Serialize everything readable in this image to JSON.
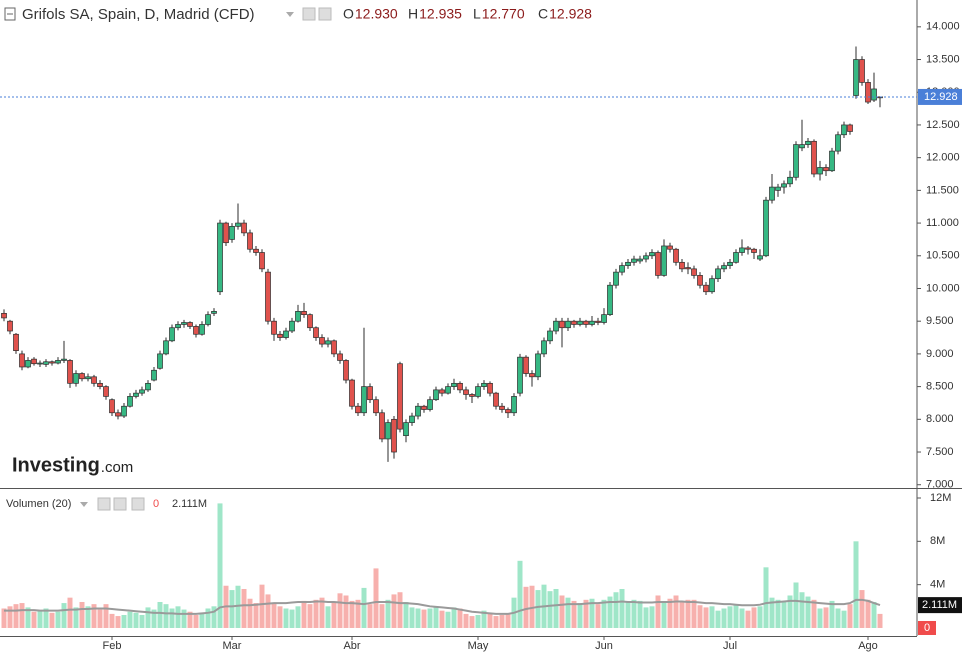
{
  "chart_data": {
    "type": "candlestick",
    "title": "Grifols SA, Spain, D, Madrid (CFD)",
    "ohlc": [
      {
        "label": "O",
        "value": "12.930"
      },
      {
        "label": "H",
        "value": "12.935"
      },
      {
        "label": "L",
        "value": "12.770"
      },
      {
        "label": "C",
        "value": "12.928"
      }
    ],
    "watermark": "Investing",
    "watermark_suffix": ".com",
    "up_color": "#36b883",
    "down_color": "#e0524d",
    "line_color": "#2c2c2c",
    "last_price": 12.928,
    "last_price_color": "#4a7fd8",
    "ylim": [
      6.95,
      14.41
    ],
    "yticks": [
      {
        "value": 14,
        "label": "14.000"
      },
      {
        "value": 13.5,
        "label": "13.500"
      },
      {
        "value": 13,
        "label": "13.000"
      },
      {
        "value": 12.5,
        "label": "12.500"
      },
      {
        "value": 12,
        "label": "12.000"
      },
      {
        "value": 11.5,
        "label": "11.500"
      },
      {
        "value": 11,
        "label": "11.000"
      },
      {
        "value": 10.5,
        "label": "10.500"
      },
      {
        "value": 10,
        "label": "10.000"
      },
      {
        "value": 9.5,
        "label": "9.500"
      },
      {
        "value": 9,
        "label": "9.000"
      },
      {
        "value": 8.5,
        "label": "8.500"
      },
      {
        "value": 8,
        "label": "8.000"
      },
      {
        "value": 7.5,
        "label": "7.500"
      },
      {
        "value": 7,
        "label": "7.000"
      }
    ],
    "categories": [
      null,
      null,
      null,
      null,
      null,
      null,
      null,
      null,
      null,
      null,
      null,
      null,
      null,
      null,
      null,
      null,
      null,
      null,
      "Feb",
      null,
      null,
      null,
      null,
      null,
      null,
      null,
      null,
      null,
      null,
      null,
      null,
      null,
      null,
      null,
      null,
      null,
      null,
      null,
      "Mar",
      null,
      null,
      null,
      null,
      null,
      null,
      null,
      null,
      null,
      null,
      null,
      null,
      null,
      null,
      null,
      null,
      null,
      null,
      null,
      "Abr",
      null,
      null,
      null,
      null,
      null,
      null,
      null,
      null,
      null,
      null,
      null,
      null,
      null,
      null,
      null,
      null,
      null,
      null,
      null,
      null,
      "May",
      null,
      null,
      null,
      null,
      null,
      null,
      null,
      null,
      null,
      null,
      null,
      null,
      null,
      null,
      null,
      null,
      null,
      null,
      null,
      null,
      "Jun",
      null,
      null,
      null,
      null,
      null,
      null,
      null,
      null,
      null,
      null,
      null,
      null,
      null,
      null,
      null,
      null,
      null,
      null,
      null,
      null,
      "Jul",
      null,
      null,
      null,
      null,
      null,
      null,
      null,
      null,
      null,
      null,
      null,
      null,
      null,
      null,
      null,
      null,
      null,
      null,
      null,
      null,
      null,
      null,
      "Ago",
      null,
      null
    ],
    "candles": [
      [
        9.62,
        9.68,
        9.5,
        9.55
      ],
      [
        9.5,
        9.52,
        9.3,
        9.35
      ],
      [
        9.3,
        9.32,
        9.0,
        9.05
      ],
      [
        9.0,
        9.05,
        8.75,
        8.8
      ],
      [
        8.8,
        8.95,
        8.78,
        8.9
      ],
      [
        8.92,
        8.95,
        8.82,
        8.85
      ],
      [
        8.85,
        8.9,
        8.8,
        8.86
      ],
      [
        8.84,
        8.92,
        8.8,
        8.88
      ],
      [
        8.88,
        8.9,
        8.82,
        8.86
      ],
      [
        8.86,
        8.95,
        8.84,
        8.9
      ],
      [
        8.9,
        9.2,
        8.86,
        8.92
      ],
      [
        8.9,
        8.92,
        8.48,
        8.55
      ],
      [
        8.55,
        8.75,
        8.5,
        8.7
      ],
      [
        8.7,
        8.72,
        8.58,
        8.62
      ],
      [
        8.62,
        8.7,
        8.58,
        8.65
      ],
      [
        8.65,
        8.68,
        8.5,
        8.55
      ],
      [
        8.55,
        8.6,
        8.46,
        8.5
      ],
      [
        8.5,
        8.52,
        8.3,
        8.35
      ],
      [
        8.3,
        8.32,
        8.05,
        8.1
      ],
      [
        8.1,
        8.15,
        8.0,
        8.05
      ],
      [
        8.05,
        8.25,
        8.02,
        8.2
      ],
      [
        8.2,
        8.4,
        8.18,
        8.35
      ],
      [
        8.35,
        8.45,
        8.32,
        8.4
      ],
      [
        8.4,
        8.5,
        8.36,
        8.45
      ],
      [
        8.45,
        8.6,
        8.42,
        8.55
      ],
      [
        8.6,
        8.8,
        8.58,
        8.75
      ],
      [
        8.78,
        9.05,
        8.76,
        9.0
      ],
      [
        9.0,
        9.25,
        8.98,
        9.2
      ],
      [
        9.2,
        9.45,
        9.18,
        9.4
      ],
      [
        9.4,
        9.5,
        9.36,
        9.45
      ],
      [
        9.45,
        9.52,
        9.4,
        9.48
      ],
      [
        9.48,
        9.5,
        9.38,
        9.42
      ],
      [
        9.42,
        9.45,
        9.25,
        9.3
      ],
      [
        9.3,
        9.5,
        9.28,
        9.45
      ],
      [
        9.45,
        9.65,
        9.42,
        9.6
      ],
      [
        9.62,
        9.7,
        9.58,
        9.65
      ],
      [
        9.95,
        11.05,
        9.9,
        11.0
      ],
      [
        11.0,
        11.02,
        10.65,
        10.7
      ],
      [
        10.75,
        11.0,
        10.7,
        10.95
      ],
      [
        10.95,
        11.3,
        10.9,
        11.0
      ],
      [
        11.0,
        11.05,
        10.8,
        10.85
      ],
      [
        10.85,
        10.9,
        10.55,
        10.6
      ],
      [
        10.6,
        10.65,
        10.5,
        10.55
      ],
      [
        10.55,
        10.6,
        10.25,
        10.3
      ],
      [
        10.25,
        10.3,
        9.45,
        9.5
      ],
      [
        9.5,
        9.55,
        9.2,
        9.3
      ],
      [
        9.3,
        9.35,
        9.2,
        9.25
      ],
      [
        9.25,
        9.4,
        9.22,
        9.35
      ],
      [
        9.35,
        9.55,
        9.32,
        9.5
      ],
      [
        9.5,
        9.75,
        9.48,
        9.65
      ],
      [
        9.65,
        9.78,
        9.55,
        9.6
      ],
      [
        9.6,
        9.62,
        9.35,
        9.4
      ],
      [
        9.4,
        9.42,
        9.2,
        9.25
      ],
      [
        9.25,
        9.3,
        9.1,
        9.15
      ],
      [
        9.15,
        9.25,
        9.1,
        9.2
      ],
      [
        9.2,
        9.22,
        8.95,
        9.0
      ],
      [
        9.0,
        9.05,
        8.85,
        8.9
      ],
      [
        8.9,
        8.92,
        8.55,
        8.6
      ],
      [
        8.6,
        8.62,
        8.15,
        8.2
      ],
      [
        8.2,
        8.25,
        8.05,
        8.1
      ],
      [
        8.1,
        9.4,
        8.05,
        8.5
      ],
      [
        8.5,
        8.55,
        8.25,
        8.3
      ],
      [
        8.3,
        8.35,
        8.05,
        8.1
      ],
      [
        8.1,
        8.15,
        7.65,
        7.7
      ],
      [
        7.7,
        8.0,
        7.35,
        7.95
      ],
      [
        8.0,
        8.05,
        7.4,
        7.5
      ],
      [
        8.85,
        8.88,
        7.8,
        7.85
      ],
      [
        7.75,
        8.0,
        7.65,
        7.95
      ],
      [
        7.95,
        8.1,
        7.9,
        8.05
      ],
      [
        8.05,
        8.25,
        8.0,
        8.2
      ],
      [
        8.2,
        8.22,
        8.1,
        8.15
      ],
      [
        8.15,
        8.35,
        8.12,
        8.3
      ],
      [
        8.3,
        8.5,
        8.28,
        8.45
      ],
      [
        8.45,
        8.48,
        8.35,
        8.4
      ],
      [
        8.4,
        8.55,
        8.38,
        8.5
      ],
      [
        8.5,
        8.62,
        8.45,
        8.55
      ],
      [
        8.55,
        8.58,
        8.4,
        8.45
      ],
      [
        8.45,
        8.5,
        8.3,
        8.38
      ],
      [
        8.38,
        8.4,
        8.25,
        8.35
      ],
      [
        8.35,
        8.55,
        8.32,
        8.5
      ],
      [
        8.5,
        8.6,
        8.45,
        8.55
      ],
      [
        8.55,
        8.58,
        8.35,
        8.4
      ],
      [
        8.4,
        8.42,
        8.15,
        8.2
      ],
      [
        8.2,
        8.25,
        8.1,
        8.15
      ],
      [
        8.15,
        8.18,
        8.02,
        8.1
      ],
      [
        8.1,
        8.4,
        8.05,
        8.35
      ],
      [
        8.4,
        9.0,
        8.35,
        8.95
      ],
      [
        8.95,
        8.98,
        8.65,
        8.7
      ],
      [
        8.7,
        8.75,
        8.5,
        8.65
      ],
      [
        8.65,
        9.05,
        8.6,
        9.0
      ],
      [
        9.0,
        9.25,
        8.95,
        9.2
      ],
      [
        9.2,
        9.4,
        9.15,
        9.35
      ],
      [
        9.35,
        9.55,
        9.3,
        9.5
      ],
      [
        9.5,
        9.55,
        9.1,
        9.4
      ],
      [
        9.4,
        9.55,
        9.35,
        9.5
      ],
      [
        9.5,
        9.52,
        9.4,
        9.45
      ],
      [
        9.45,
        9.55,
        9.42,
        9.5
      ],
      [
        9.5,
        9.52,
        9.4,
        9.45
      ],
      [
        9.45,
        9.58,
        9.42,
        9.5
      ],
      [
        9.5,
        9.55,
        9.44,
        9.48
      ],
      [
        9.48,
        9.7,
        9.45,
        9.6
      ],
      [
        9.6,
        10.1,
        9.58,
        10.05
      ],
      [
        10.05,
        10.3,
        10.0,
        10.25
      ],
      [
        10.25,
        10.4,
        10.2,
        10.35
      ],
      [
        10.35,
        10.45,
        10.3,
        10.4
      ],
      [
        10.4,
        10.5,
        10.35,
        10.45
      ],
      [
        10.42,
        10.5,
        10.38,
        10.45
      ],
      [
        10.45,
        10.55,
        10.4,
        10.5
      ],
      [
        10.5,
        10.6,
        10.45,
        10.55
      ],
      [
        10.55,
        10.58,
        10.15,
        10.2
      ],
      [
        10.2,
        10.75,
        10.18,
        10.65
      ],
      [
        10.65,
        10.7,
        10.55,
        10.6
      ],
      [
        10.6,
        10.62,
        10.35,
        10.4
      ],
      [
        10.4,
        10.45,
        10.25,
        10.3
      ],
      [
        10.32,
        10.4,
        10.22,
        10.3
      ],
      [
        10.3,
        10.35,
        10.15,
        10.2
      ],
      [
        10.2,
        10.25,
        10.0,
        10.05
      ],
      [
        10.05,
        10.1,
        9.9,
        9.95
      ],
      [
        9.95,
        10.2,
        9.92,
        10.15
      ],
      [
        10.15,
        10.35,
        10.1,
        10.3
      ],
      [
        10.3,
        10.4,
        10.25,
        10.35
      ],
      [
        10.35,
        10.45,
        10.3,
        10.4
      ],
      [
        10.4,
        10.6,
        10.38,
        10.55
      ],
      [
        10.55,
        10.75,
        10.5,
        10.62
      ],
      [
        10.62,
        10.65,
        10.52,
        10.6
      ],
      [
        10.6,
        10.62,
        10.45,
        10.55
      ],
      [
        10.45,
        10.6,
        10.42,
        10.5
      ],
      [
        10.5,
        11.4,
        10.48,
        11.35
      ],
      [
        11.35,
        11.75,
        11.3,
        11.55
      ],
      [
        11.5,
        11.6,
        11.4,
        11.55
      ],
      [
        11.55,
        11.65,
        11.45,
        11.6
      ],
      [
        11.6,
        11.8,
        11.55,
        11.7
      ],
      [
        11.7,
        12.25,
        11.65,
        12.2
      ],
      [
        12.15,
        12.58,
        12.1,
        12.2
      ],
      [
        12.2,
        12.3,
        12.15,
        12.25
      ],
      [
        12.25,
        12.28,
        11.7,
        11.75
      ],
      [
        11.75,
        11.95,
        11.65,
        11.85
      ],
      [
        11.85,
        11.9,
        11.72,
        11.8
      ],
      [
        11.8,
        12.15,
        11.78,
        12.1
      ],
      [
        12.1,
        12.4,
        12.05,
        12.35
      ],
      [
        12.35,
        12.55,
        12.3,
        12.5
      ],
      [
        12.5,
        12.52,
        12.35,
        12.4
      ],
      [
        12.95,
        13.7,
        12.9,
        13.5
      ],
      [
        13.5,
        13.55,
        13.1,
        13.15
      ],
      [
        13.15,
        13.2,
        12.82,
        12.85
      ],
      [
        12.88,
        13.3,
        12.85,
        13.05
      ],
      [
        12.93,
        12.935,
        12.77,
        12.928
      ]
    ],
    "volume": {
      "name": "Volumen (20)",
      "up_color": "#9fe6c8",
      "down_color": "#f7b0ad",
      "ma_color": "#9a9a9a",
      "current": 0,
      "current_color": "#f04b4b",
      "ma_last": {
        "value": 2.111,
        "label": "2.111M"
      },
      "ylim": [
        -0.74,
        12.83
      ],
      "yticks": [
        {
          "value": 12,
          "label": "12M"
        },
        {
          "value": 8,
          "label": "8M"
        },
        {
          "value": 4,
          "label": "4M"
        }
      ],
      "values": [
        1.8,
        2.0,
        2.2,
        2.3,
        1.9,
        1.5,
        1.6,
        1.8,
        1.4,
        1.5,
        2.3,
        2.8,
        1.9,
        2.4,
        2.0,
        2.2,
        1.7,
        2.2,
        1.3,
        1.1,
        1.2,
        1.5,
        1.4,
        1.2,
        1.9,
        1.7,
        2.4,
        2.2,
        1.8,
        2.0,
        1.7,
        1.5,
        1.2,
        1.4,
        1.8,
        2.0,
        11.5,
        3.9,
        3.5,
        3.9,
        3.6,
        2.7,
        2.3,
        4.0,
        3.1,
        2.3,
        2.0,
        1.8,
        1.7,
        2.0,
        2.5,
        2.2,
        2.6,
        2.8,
        2.0,
        2.4,
        3.2,
        3.0,
        2.5,
        2.6,
        3.7,
        2.2,
        5.5,
        2.2,
        2.6,
        3.1,
        3.3,
        2.4,
        1.9,
        1.8,
        1.7,
        1.8,
        2.0,
        1.6,
        1.5,
        1.9,
        1.8,
        1.3,
        1.1,
        1.2,
        1.6,
        1.3,
        1.1,
        1.2,
        1.3,
        2.8,
        6.2,
        3.8,
        3.9,
        3.5,
        4.0,
        3.4,
        3.6,
        3.0,
        2.8,
        2.5,
        2.3,
        2.6,
        2.7,
        2.2,
        2.6,
        2.9,
        3.3,
        3.6,
        2.4,
        2.6,
        2.5,
        1.9,
        2.0,
        3.0,
        2.4,
        2.7,
        3.0,
        2.4,
        2.6,
        2.6,
        2.1,
        1.9,
        2.0,
        1.6,
        1.8,
        2.0,
        2.1,
        1.8,
        1.6,
        1.9,
        2.0,
        5.6,
        2.8,
        2.6,
        2.5,
        3.0,
        4.2,
        3.3,
        2.9,
        2.6,
        1.8,
        1.9,
        2.5,
        1.8,
        1.6,
        2.2,
        8.0,
        3.5,
        2.6,
        2.4,
        1.3
      ],
      "ma": [
        1.6,
        1.6,
        1.6,
        1.65,
        1.65,
        1.65,
        1.6,
        1.6,
        1.6,
        1.6,
        1.65,
        1.7,
        1.7,
        1.75,
        1.75,
        1.8,
        1.8,
        1.8,
        1.75,
        1.7,
        1.65,
        1.6,
        1.55,
        1.5,
        1.45,
        1.4,
        1.4,
        1.35,
        1.35,
        1.3,
        1.3,
        1.3,
        1.3,
        1.35,
        1.4,
        1.5,
        1.9,
        2.0,
        2.0,
        2.05,
        2.1,
        2.1,
        2.15,
        2.2,
        2.25,
        2.3,
        2.3,
        2.3,
        2.35,
        2.4,
        2.4,
        2.4,
        2.45,
        2.45,
        2.4,
        2.4,
        2.35,
        2.3,
        2.3,
        2.25,
        2.2,
        2.3,
        2.4,
        2.4,
        2.4,
        2.35,
        2.3,
        2.3,
        2.25,
        2.2,
        2.1,
        2.0,
        1.95,
        1.9,
        1.85,
        1.8,
        1.7,
        1.6,
        1.5,
        1.45,
        1.4,
        1.35,
        1.3,
        1.3,
        1.3,
        1.4,
        1.6,
        1.75,
        1.85,
        1.95,
        2.0,
        2.05,
        2.1,
        2.15,
        2.2,
        2.2,
        2.2,
        2.25,
        2.3,
        2.3,
        2.35,
        2.4,
        2.4,
        2.45,
        2.4,
        2.4,
        2.35,
        2.35,
        2.35,
        2.4,
        2.4,
        2.4,
        2.45,
        2.45,
        2.4,
        2.4,
        2.35,
        2.3,
        2.3,
        2.25,
        2.2,
        2.2,
        2.15,
        2.1,
        2.1,
        2.1,
        2.15,
        2.3,
        2.35,
        2.4,
        2.45,
        2.5,
        2.5,
        2.45,
        2.4,
        2.35,
        2.3,
        2.25,
        2.2,
        2.2,
        2.2,
        2.3,
        2.6,
        2.6,
        2.5,
        2.3,
        2.111
      ]
    }
  }
}
